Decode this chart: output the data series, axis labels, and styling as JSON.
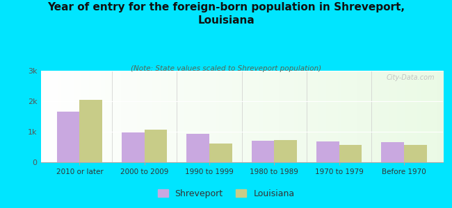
{
  "title": "Year of entry for the foreign-born population in Shreveport,\nLouisiana",
  "subtitle": "(Note: State values scaled to Shreveport population)",
  "categories": [
    "2010 or later",
    "2000 to 2009",
    "1990 to 1999",
    "1980 to 1989",
    "1970 to 1979",
    "Before 1970"
  ],
  "shreveport_values": [
    1650,
    975,
    935,
    700,
    680,
    650
  ],
  "louisiana_values": [
    2050,
    1075,
    620,
    730,
    570,
    560
  ],
  "shreveport_color": "#c9a8e0",
  "louisiana_color": "#c8cc88",
  "background_color": "#00e5ff",
  "ylim": [
    0,
    3000
  ],
  "yticks": [
    0,
    1000,
    2000,
    3000
  ],
  "ytick_labels": [
    "0",
    "1k",
    "2k",
    "3k"
  ],
  "bar_width": 0.35,
  "title_fontsize": 11,
  "subtitle_fontsize": 7.5,
  "legend_fontsize": 9,
  "axis_color": "#aaaaaa",
  "watermark": "City-Data.com"
}
